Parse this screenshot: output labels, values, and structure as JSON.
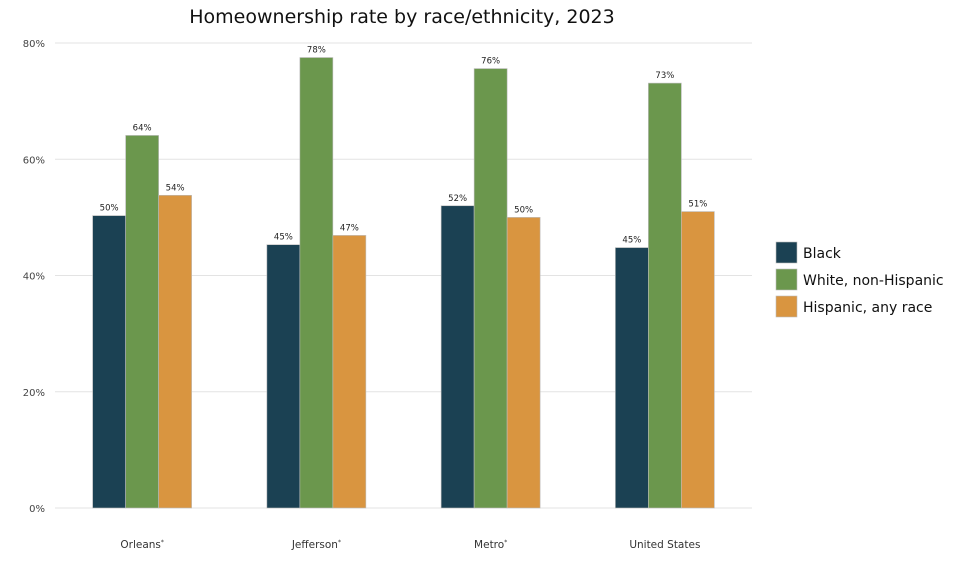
{
  "colors": {
    "black": "#1b4153",
    "white_nh": "#6b974d",
    "hispanic": "#d99540"
  },
  "chart_data": {
    "type": "bar",
    "title": "Homeownership rate by race/ethnicity, 2023",
    "xlabel": "",
    "ylabel": "",
    "ylim": [
      0,
      80
    ],
    "yticks": [
      0,
      20,
      40,
      60,
      80
    ],
    "ytick_labels": [
      "0%",
      "20%",
      "40%",
      "60%",
      "80%"
    ],
    "categories": [
      "Orleans",
      "Jefferson",
      "Metro",
      "United States"
    ],
    "category_marks": [
      "*",
      "*",
      "*",
      ""
    ],
    "series": [
      {
        "name": "Black",
        "color": "#1b4153",
        "values": [
          50.3,
          45.3,
          52.0,
          44.8
        ],
        "labels": [
          "50%",
          "45%",
          "52%",
          "45%"
        ]
      },
      {
        "name": "White, non-Hispanic",
        "color": "#6b974d",
        "values": [
          64.1,
          77.5,
          75.6,
          73.1
        ],
        "labels": [
          "64%",
          "78%",
          "76%",
          "73%"
        ]
      },
      {
        "name": "Hispanic, any race",
        "color": "#d99540",
        "values": [
          53.8,
          46.9,
          50.0,
          51.0
        ],
        "labels": [
          "54%",
          "47%",
          "50%",
          "51%"
        ]
      }
    ],
    "grid": true,
    "legend_position": "right"
  }
}
